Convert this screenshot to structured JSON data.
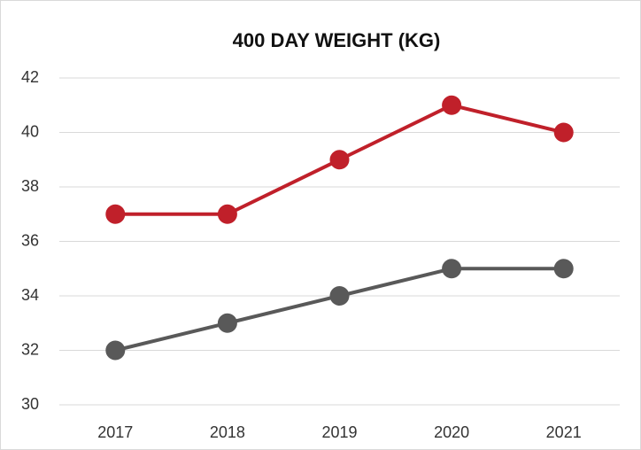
{
  "chart_data": {
    "type": "line",
    "title": "400 DAY WEIGHT (KG)",
    "categories": [
      "2017",
      "2018",
      "2019",
      "2020",
      "2021"
    ],
    "series": [
      {
        "color": "#c0202a",
        "values": [
          37,
          37,
          39,
          41,
          40
        ]
      },
      {
        "color": "#595959",
        "values": [
          32,
          33,
          34,
          35,
          35
        ]
      }
    ],
    "ylim": [
      30,
      42
    ],
    "yticks": [
      30,
      32,
      34,
      36,
      38,
      40,
      42
    ],
    "grid": true
  }
}
